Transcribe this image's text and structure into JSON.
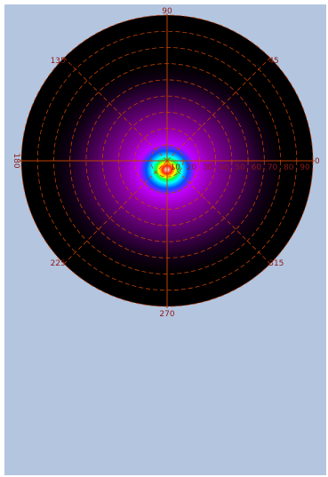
{
  "chart_data": {
    "type": "heatmap",
    "projection": "polar",
    "colormap": [
      "#000000",
      "#800080",
      "#ff00ff",
      "#0000ff",
      "#00ffff",
      "#00ff00",
      "#ffff00",
      "#ff0000",
      "#ffffff"
    ],
    "angular_ticks": [
      "90",
      "45",
      "0",
      "315",
      "270",
      "225",
      "180",
      "135"
    ],
    "angular_tick_values": [
      90,
      45,
      0,
      315,
      270,
      225,
      180,
      135
    ],
    "radial_ticks": [
      "10",
      "20",
      "30",
      "40",
      "50",
      "60",
      "70",
      "80",
      "90"
    ],
    "radial_tick_values": [
      10,
      20,
      30,
      40,
      50,
      60,
      70,
      80,
      90
    ],
    "rlim": [
      0,
      90
    ],
    "grid": true,
    "grid_color": "#c04000",
    "label_color": "#8b1a1a"
  }
}
